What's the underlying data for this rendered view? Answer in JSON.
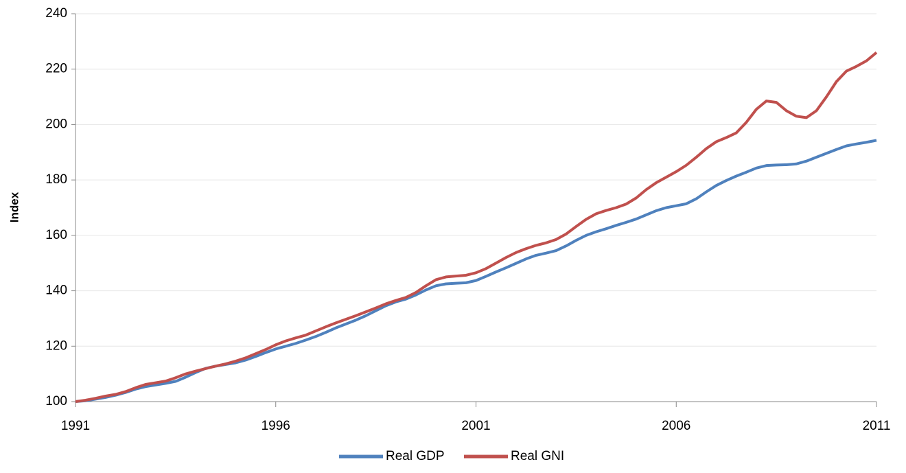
{
  "chart_data": {
    "type": "line",
    "y_label": "Index",
    "x": [
      1991,
      1991.25,
      1991.5,
      1991.75,
      1992,
      1992.25,
      1992.5,
      1992.75,
      1993,
      1993.25,
      1993.5,
      1993.75,
      1994,
      1994.25,
      1994.5,
      1994.75,
      1995,
      1995.25,
      1995.5,
      1995.75,
      1996,
      1996.25,
      1996.5,
      1996.75,
      1997,
      1997.25,
      1997.5,
      1997.75,
      1998,
      1998.25,
      1998.5,
      1998.75,
      1999,
      1999.25,
      1999.5,
      1999.75,
      2000,
      2000.25,
      2000.5,
      2000.75,
      2001,
      2001.25,
      2001.5,
      2001.75,
      2002,
      2002.25,
      2002.5,
      2002.75,
      2003,
      2003.25,
      2003.5,
      2003.75,
      2004,
      2004.25,
      2004.5,
      2004.75,
      2005,
      2005.25,
      2005.5,
      2005.75,
      2006,
      2006.25,
      2006.5,
      2006.75,
      2007,
      2007.25,
      2007.5,
      2007.75,
      2008,
      2008.25,
      2008.5,
      2008.75,
      2009,
      2009.25,
      2009.5,
      2009.75,
      2010,
      2010.25,
      2010.5,
      2010.75,
      2011
    ],
    "series": [
      {
        "name": "Real GDP",
        "color": "#4f81bd",
        "values": [
          100,
          100.3,
          100.9,
          101.5,
          102.3,
          103.3,
          104.5,
          105.4,
          106.0,
          106.6,
          107.3,
          108.8,
          110.5,
          112.0,
          112.8,
          113.4,
          114.0,
          115.0,
          116.3,
          117.7,
          119.0,
          120.0,
          121.0,
          122.2,
          123.5,
          125.0,
          126.6,
          128.0,
          129.4,
          131.0,
          132.8,
          134.6,
          136.0,
          137.0,
          138.5,
          140.3,
          141.8,
          142.5,
          142.7,
          142.9,
          143.7,
          145.2,
          146.8,
          148.3,
          149.9,
          151.5,
          152.8,
          153.6,
          154.5,
          156.2,
          158.2,
          160.0,
          161.3,
          162.4,
          163.6,
          164.7,
          165.9,
          167.4,
          168.9,
          170.0,
          170.7,
          171.4,
          173.2,
          175.7,
          178.0,
          179.8,
          181.4,
          182.8,
          184.3,
          185.2,
          185.4,
          185.5,
          185.8,
          186.8,
          188.2,
          189.6,
          191.0,
          192.3,
          193.0,
          193.6,
          194.3
        ]
      },
      {
        "name": "Real GNI",
        "color": "#c0504d",
        "values": [
          100,
          100.5,
          101.2,
          102.0,
          102.6,
          103.6,
          105.0,
          106.2,
          106.8,
          107.4,
          108.6,
          110.0,
          111.0,
          111.9,
          112.8,
          113.6,
          114.6,
          115.8,
          117.3,
          118.8,
          120.5,
          121.9,
          123.0,
          124.0,
          125.5,
          127.0,
          128.4,
          129.7,
          131.0,
          132.4,
          133.8,
          135.3,
          136.5,
          137.6,
          139.4,
          141.8,
          144.0,
          145.0,
          145.3,
          145.6,
          146.5,
          148.0,
          150.0,
          152.0,
          153.8,
          155.2,
          156.4,
          157.3,
          158.5,
          160.5,
          163.2,
          165.8,
          167.8,
          169.0,
          170.0,
          171.3,
          173.5,
          176.5,
          179.0,
          181.0,
          183.0,
          185.3,
          188.2,
          191.3,
          193.8,
          195.3,
          197.0,
          200.8,
          205.5,
          208.5,
          208.0,
          205.0,
          203.0,
          202.5,
          205.0,
          210.0,
          215.5,
          219.3,
          221.0,
          223.0,
          226.0
        ]
      }
    ],
    "xlim": [
      1991,
      2011
    ],
    "xticks": [
      1991,
      1996,
      2001,
      2006,
      2011
    ],
    "ylim": [
      100,
      240
    ],
    "yticks": [
      100,
      120,
      140,
      160,
      180,
      200,
      220,
      240
    ],
    "grid": true,
    "legend": "bottom"
  }
}
